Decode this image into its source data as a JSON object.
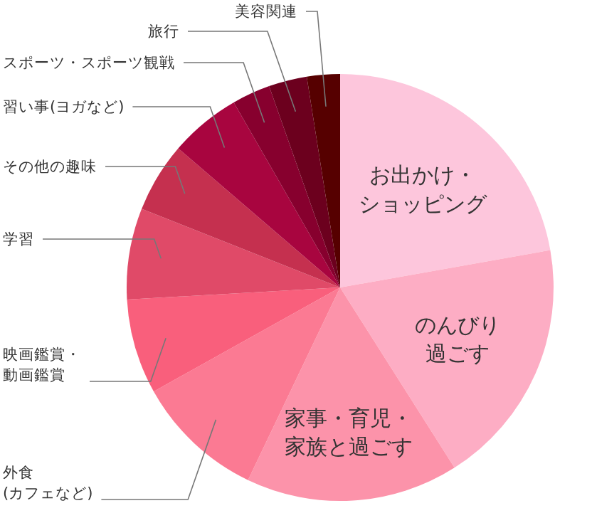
{
  "chart_data": {
    "type": "pie",
    "categories": [
      "お出かけ・ショッピング",
      "のんびり過ごす",
      "家事・育児・家族と過ごす",
      "外食(カフェなど)",
      "映画鑑賞・動画鑑賞",
      "学習",
      "その他の趣味",
      "習い事(ヨガなど)",
      "スポーツ・スポーツ観戦",
      "旅行",
      "美容関連"
    ],
    "values": [
      22.2,
      18.8,
      16.1,
      9.8,
      7.2,
      6.9,
      5.3,
      5.4,
      2.9,
      2.9,
      2.5
    ],
    "colors": [
      "#fdc6dc",
      "#fdadc4",
      "#fc93aa",
      "#fb7a93",
      "#f95f7c",
      "#e04a68",
      "#c5304f",
      "#a8053f",
      "#87002e",
      "#6c001e",
      "#560000"
    ]
  }
}
